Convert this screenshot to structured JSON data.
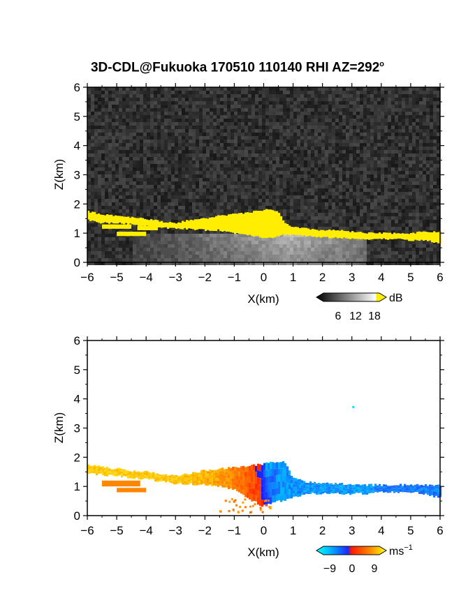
{
  "title": {
    "text": "3D-CDL@Fukuoka 170510 110140 RHI AZ=292",
    "degree_symbol": "o"
  },
  "chart_data": [
    {
      "type": "heatmap",
      "panel": "reflectivity",
      "xlabel": "X(km)",
      "ylabel": "Z(km)",
      "xlim": [
        -6,
        6
      ],
      "ylim": [
        0,
        6
      ],
      "xticks": [
        "−6",
        "−5",
        "−4",
        "−3",
        "−2",
        "−1",
        "0",
        "1",
        "2",
        "3",
        "4",
        "5",
        "6"
      ],
      "yticks": [
        "0",
        "1",
        "2",
        "3",
        "4",
        "5",
        "6"
      ],
      "grid": false,
      "colorbar": {
        "unit": "dB",
        "tick_labels": [
          "6",
          "12",
          "18"
        ],
        "range": [
          0,
          21
        ]
      },
      "background_level_db": 4,
      "yellow_layer": {
        "color": "#ffee00",
        "x": [
          -6.0,
          -5.5,
          -5.0,
          -4.5,
          -4.0,
          -3.5,
          -3.0,
          -2.5,
          -2.0,
          -1.5,
          -1.0,
          -0.5,
          0.0,
          0.3,
          0.5,
          0.7,
          1.0,
          1.5,
          2.0,
          2.5,
          3.0,
          3.5,
          4.0,
          4.5,
          5.0,
          5.5,
          6.0
        ],
        "top": [
          1.75,
          1.65,
          1.6,
          1.55,
          1.5,
          1.4,
          1.35,
          1.45,
          1.5,
          1.6,
          1.65,
          1.7,
          1.8,
          1.8,
          1.75,
          1.35,
          1.2,
          1.15,
          1.1,
          1.1,
          1.05,
          1.0,
          1.0,
          1.0,
          1.0,
          1.05,
          1.05
        ],
        "bottom": [
          1.45,
          1.35,
          1.35,
          1.3,
          1.25,
          1.2,
          1.15,
          1.15,
          1.1,
          1.1,
          1.0,
          0.95,
          0.85,
          0.85,
          0.9,
          0.95,
          0.95,
          0.9,
          0.85,
          0.85,
          0.8,
          0.8,
          0.8,
          0.8,
          0.75,
          0.75,
          0.65
        ]
      },
      "aerosol_region": {
        "level_db": 13,
        "x": [
          -4.5,
          3.5
        ],
        "z_top": 1.0
      }
    },
    {
      "type": "heatmap",
      "panel": "radial-velocity",
      "xlabel": "X(km)",
      "ylabel": "Z(km)",
      "xlim": [
        -6,
        6
      ],
      "ylim": [
        0,
        6
      ],
      "xticks": [
        "−6",
        "−5",
        "−4",
        "−3",
        "−2",
        "−1",
        "0",
        "1",
        "2",
        "3",
        "4",
        "5",
        "6"
      ],
      "yticks": [
        "0",
        "1",
        "2",
        "3",
        "4",
        "5",
        "6"
      ],
      "grid": false,
      "colorbar": {
        "unit": "ms",
        "unit_exponent": "−1",
        "tick_labels": [
          "−9",
          "0",
          "9"
        ],
        "range": [
          -12,
          12
        ]
      },
      "layer": {
        "x": [
          -6.0,
          -5.0,
          -4.0,
          -3.0,
          -2.0,
          -1.5,
          -1.0,
          -0.5,
          -0.1,
          0.1,
          0.5,
          0.7,
          1.0,
          1.5,
          2.0,
          2.5,
          3.0,
          3.5,
          4.0,
          4.5,
          5.0,
          5.5,
          6.0
        ],
        "top": [
          1.75,
          1.6,
          1.5,
          1.35,
          1.55,
          1.6,
          1.65,
          1.7,
          1.75,
          1.8,
          1.85,
          1.85,
          1.3,
          1.15,
          1.1,
          1.1,
          1.05,
          1.05,
          1.05,
          1.05,
          1.05,
          1.05,
          1.05
        ],
        "bottom": [
          1.45,
          1.35,
          1.25,
          1.1,
          1.05,
          1.0,
          0.9,
          0.6,
          0.35,
          0.35,
          0.5,
          0.5,
          0.6,
          0.75,
          0.75,
          0.75,
          0.75,
          0.75,
          0.8,
          0.8,
          0.8,
          0.75,
          0.6
        ],
        "velocity": [
          8,
          8,
          8,
          8,
          7,
          6,
          5,
          3,
          1,
          -4,
          -6,
          -6,
          -6,
          -6,
          -6,
          -6,
          -6,
          -6,
          -5,
          -5,
          -5,
          -5,
          -5
        ]
      },
      "isolated_point": {
        "x": 3.05,
        "z": 3.72,
        "velocity": -10
      }
    }
  ]
}
